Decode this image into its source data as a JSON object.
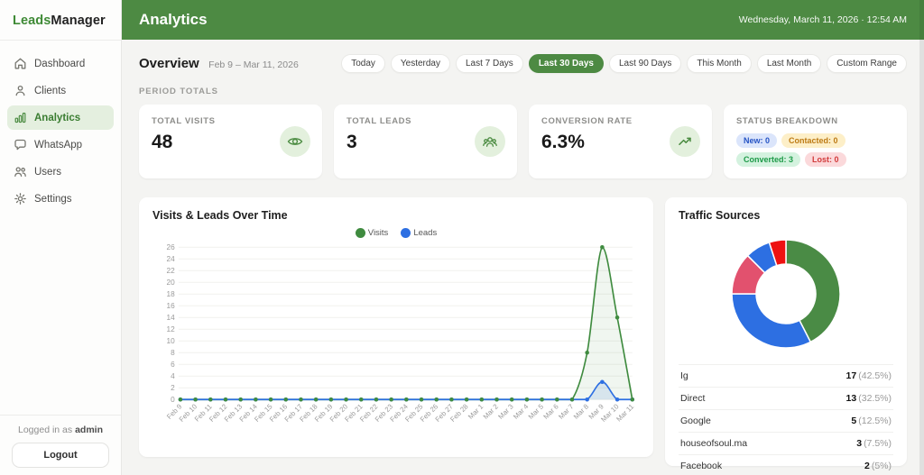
{
  "app": {
    "brand_leads": "Leads",
    "brand_manager": "Manager",
    "logged_in_prefix": "Logged in as",
    "logged_in_user": "admin",
    "logout_label": "Logout"
  },
  "sidebar": {
    "active": "Analytics",
    "items": [
      {
        "label": "Dashboard"
      },
      {
        "label": "Clients"
      },
      {
        "label": "Analytics"
      },
      {
        "label": "WhatsApp"
      },
      {
        "label": "Users"
      },
      {
        "label": "Settings"
      }
    ]
  },
  "header": {
    "title": "Analytics",
    "datetime": "Wednesday, March 11, 2026 · 12:54 AM"
  },
  "overview": {
    "title": "Overview",
    "range": "Feb 9 – Mar 11, 2026",
    "section_label": "PERIOD TOTALS",
    "active_filter": "Last 30 Days",
    "filters": [
      "Today",
      "Yesterday",
      "Last 7 Days",
      "Last 30 Days",
      "Last 90 Days",
      "This Month",
      "Last Month",
      "Custom Range"
    ]
  },
  "cards": {
    "visits": {
      "label": "TOTAL VISITS",
      "value": "48",
      "icon": "eye-icon"
    },
    "leads": {
      "label": "TOTAL LEADS",
      "value": "3",
      "icon": "leads-group-icon"
    },
    "conversion": {
      "label": "CONVERSION RATE",
      "value": "6.3%",
      "icon": "trending-up-icon"
    },
    "status": {
      "label": "STATUS BREAKDOWN",
      "pills": [
        {
          "label": "New: 0",
          "bg": "#dbe5fb",
          "fg": "#2553c4"
        },
        {
          "label": "Contacted: 0",
          "bg": "#fdefc8",
          "fg": "#bd7a14"
        },
        {
          "label": "Converted: 3",
          "bg": "#d4f2df",
          "fg": "#1d9a48"
        },
        {
          "label": "Lost: 0",
          "bg": "#fbd9db",
          "fg": "#d23b3b"
        }
      ]
    }
  },
  "chart_data": [
    {
      "type": "line",
      "title": "Visits & Leads Over Time",
      "legend_position": "top",
      "grid": true,
      "ylim": [
        0,
        26
      ],
      "ytick_step": 2,
      "x": [
        "Feb 9",
        "Feb 10",
        "Feb 11",
        "Feb 12",
        "Feb 13",
        "Feb 14",
        "Feb 15",
        "Feb 16",
        "Feb 17",
        "Feb 18",
        "Feb 19",
        "Feb 20",
        "Feb 21",
        "Feb 22",
        "Feb 23",
        "Feb 24",
        "Feb 25",
        "Feb 26",
        "Feb 27",
        "Feb 28",
        "Mar 1",
        "Mar 2",
        "Mar 3",
        "Mar 4",
        "Mar 5",
        "Mar 6",
        "Mar 7",
        "Mar 8",
        "Mar 9",
        "Mar 10",
        "Mar 11"
      ],
      "series": [
        {
          "name": "Visits",
          "color": "#3f8b3f",
          "fill": "rgba(63,139,63,0.08)",
          "values": [
            0,
            0,
            0,
            0,
            0,
            0,
            0,
            0,
            0,
            0,
            0,
            0,
            0,
            0,
            0,
            0,
            0,
            0,
            0,
            0,
            0,
            0,
            0,
            0,
            0,
            0,
            0,
            8,
            26,
            14,
            0
          ]
        },
        {
          "name": "Leads",
          "color": "#2d6fe2",
          "fill": "rgba(45,111,226,0.12)",
          "values": [
            0,
            0,
            0,
            0,
            0,
            0,
            0,
            0,
            0,
            0,
            0,
            0,
            0,
            0,
            0,
            0,
            0,
            0,
            0,
            0,
            0,
            0,
            0,
            0,
            0,
            0,
            0,
            0,
            3,
            0,
            0
          ]
        }
      ]
    },
    {
      "type": "pie",
      "donut": true,
      "title": "Traffic Sources",
      "labels": [
        "Ig",
        "Direct",
        "Google",
        "houseofsoul.ma",
        "Facebook"
      ],
      "values": [
        17,
        13,
        5,
        3,
        2
      ],
      "colors": [
        "#4a8b45",
        "#2d6fe2",
        "#e2516e",
        "#2d6fe2",
        "#ee1111"
      ],
      "rows": [
        {
          "label": "Ig",
          "count": "17",
          "percent": "(42.5%)"
        },
        {
          "label": "Direct",
          "count": "13",
          "percent": "(32.5%)"
        },
        {
          "label": "Google",
          "count": "5",
          "percent": "(12.5%)"
        },
        {
          "label": "houseofsoul.ma",
          "count": "3",
          "percent": "(7.5%)"
        },
        {
          "label": "Facebook",
          "count": "2",
          "percent": "(5%)"
        }
      ]
    }
  ],
  "theme": {
    "green": "#4d8a43",
    "light_green_bg": "#e3f0dd",
    "page_bg": "#f4f4f2"
  }
}
